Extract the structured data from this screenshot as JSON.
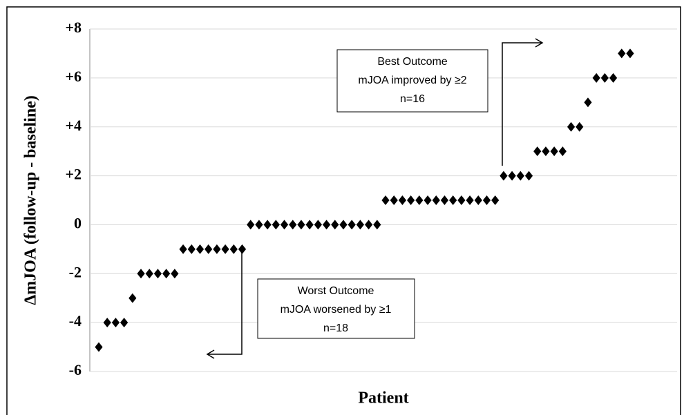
{
  "chart_data": {
    "type": "scatter",
    "y_label": "ΔmJOA (follow-up - baseline)",
    "x_label": "Patient",
    "values": [
      -5,
      -4,
      -4,
      -4,
      -3,
      -2,
      -2,
      -2,
      -2,
      -2,
      -1,
      -1,
      -1,
      -1,
      -1,
      -1,
      -1,
      -1,
      0,
      0,
      0,
      0,
      0,
      0,
      0,
      0,
      0,
      0,
      0,
      0,
      0,
      0,
      0,
      0,
      1,
      1,
      1,
      1,
      1,
      1,
      1,
      1,
      1,
      1,
      1,
      1,
      1,
      1,
      2,
      2,
      2,
      2,
      3,
      3,
      3,
      3,
      4,
      4,
      5,
      6,
      6,
      6,
      7,
      7
    ],
    "color": "#000000",
    "ylim": [
      -6,
      8
    ],
    "yticks": [
      -6,
      -4,
      -2,
      0,
      {
        "value": 2,
        "label": "+2"
      },
      {
        "value": 4,
        "label": "+4"
      },
      {
        "value": 6,
        "label": "+6"
      },
      {
        "value": 8,
        "label": "+8"
      }
    ],
    "grid": true,
    "annotations": [
      {
        "lines": [
          "Best Outcome",
          "mJOA improved by ≥2",
          "n=16"
        ]
      },
      {
        "lines": [
          "Worst Outcome",
          "mJOA worsened by ≥1",
          "n=18"
        ]
      }
    ]
  }
}
